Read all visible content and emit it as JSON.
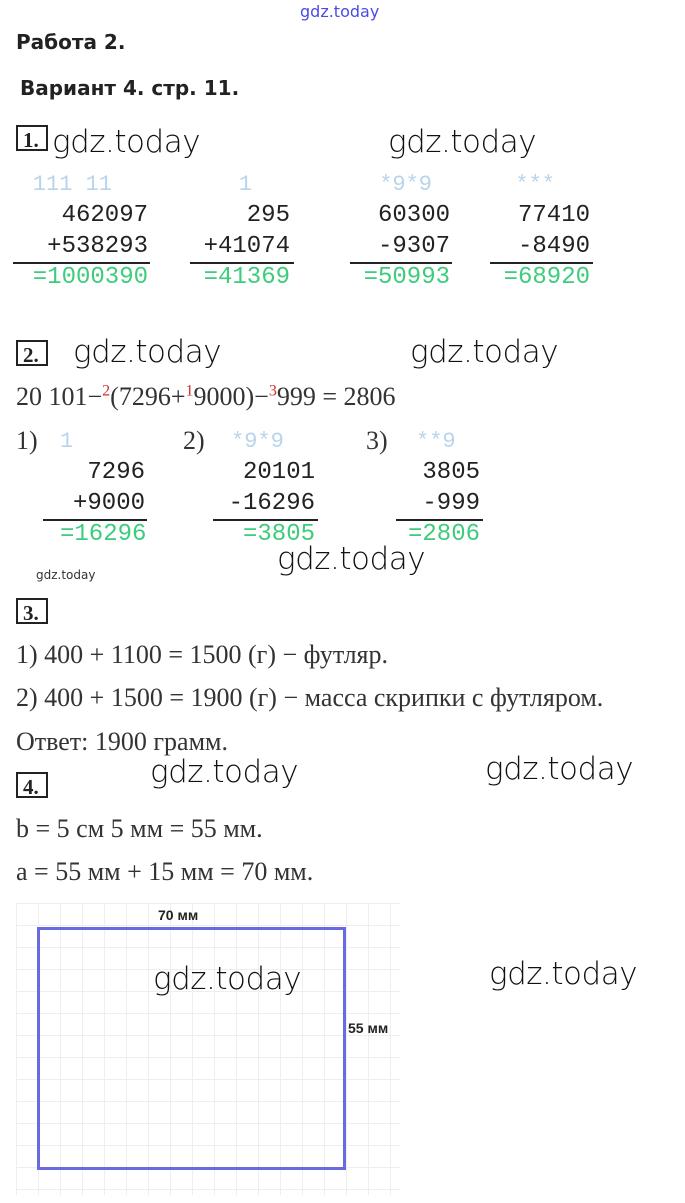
{
  "watermark": "gdz.today",
  "header": {
    "title": "Работа 2.",
    "variant": "Вариант 4. стр. 11."
  },
  "task1": {
    "number": "1.",
    "columns": [
      {
        "carry": "111 11",
        "a": "462097",
        "b": "+538293",
        "r": "=1000390"
      },
      {
        "carry": "1",
        "a": "295",
        "b": "+41074",
        "r": "=41369"
      },
      {
        "carry": "*9*9",
        "a": "60300",
        "b": "-9307",
        "r": "=50993"
      },
      {
        "carry": "***",
        "a": "77410",
        "b": "-8490",
        "r": "=68920"
      }
    ]
  },
  "task2": {
    "number": "2.",
    "expr": {
      "p1": "20 101−",
      "o1": "2",
      "p2": "(7296+",
      "o2": "1",
      "p3": "9000)−",
      "o3": "3",
      "p4": "999 = 2806"
    },
    "steps": [
      {
        "label": "1)",
        "carry": "1",
        "a": "7296",
        "b": "+9000",
        "r": "=16296"
      },
      {
        "label": "2)",
        "carry": "*9*9",
        "a": "20101",
        "b": "-16296",
        "r": "=3805"
      },
      {
        "label": "3)",
        "carry": "**9",
        "a": "3805",
        "b": "-999",
        "r": "=2806"
      }
    ]
  },
  "task3": {
    "number": "3.",
    "lines": [
      "1) 400 + 1100 = 1500 (г) − футляр.",
      "2) 400 + 1500 = 1900 (г) − масса скрипки с футляром.",
      "Ответ: 1900 грамм."
    ]
  },
  "task4": {
    "number": "4.",
    "lines": [
      "b = 5 см 5 мм = 55 мм.",
      "a = 55 мм + 15 мм = 70 мм."
    ],
    "width_label": "70 мм",
    "height_label": "55 мм",
    "rect_color": "#6a6ae0"
  },
  "colors": {
    "result": "#3ccc7c",
    "carry": "#b8d4ec",
    "order": "#d03030"
  }
}
